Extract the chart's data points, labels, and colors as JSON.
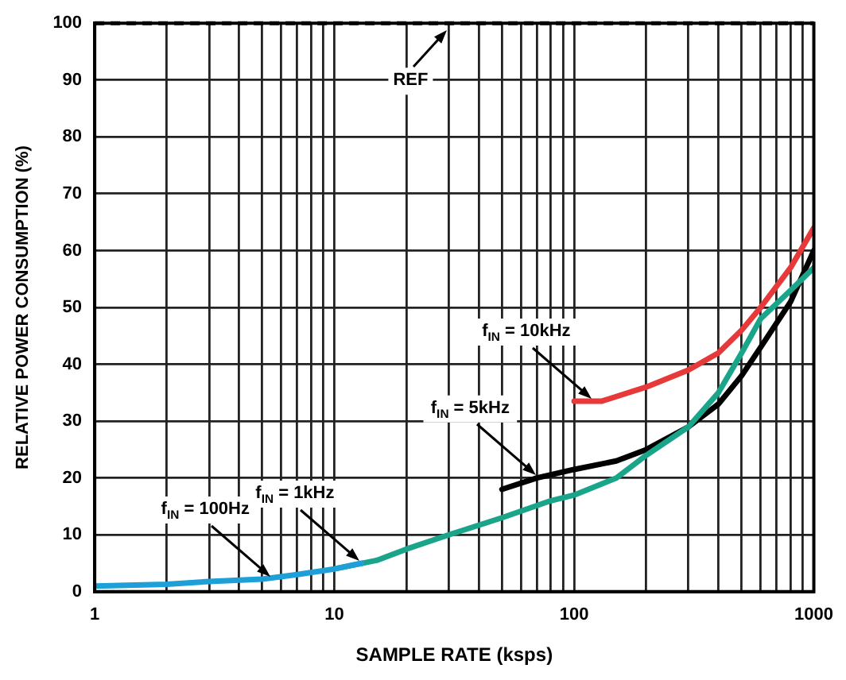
{
  "chart_data": {
    "type": "line",
    "xlabel": "SAMPLE RATE (ksps)",
    "ylabel": "RELATIVE POWER CONSUMPTION (%)",
    "log": "x",
    "xlim": [
      1,
      1000
    ],
    "ylim": [
      0,
      100
    ],
    "xticks": [
      1,
      {
        "value": 2,
        "label": null
      },
      {
        "value": 3,
        "label": null
      },
      {
        "value": 4,
        "label": null
      },
      {
        "value": 5,
        "label": null
      },
      {
        "value": 6,
        "label": null
      },
      {
        "value": 7,
        "label": null
      },
      {
        "value": 8,
        "label": null
      },
      {
        "value": 9,
        "label": null
      },
      10,
      {
        "value": 20,
        "label": null
      },
      {
        "value": 30,
        "label": null
      },
      {
        "value": 40,
        "label": null
      },
      {
        "value": 50,
        "label": null
      },
      {
        "value": 60,
        "label": null
      },
      {
        "value": 70,
        "label": null
      },
      {
        "value": 80,
        "label": null
      },
      {
        "value": 90,
        "label": null
      },
      100,
      {
        "value": 200,
        "label": null
      },
      {
        "value": 300,
        "label": null
      },
      {
        "value": 400,
        "label": null
      },
      {
        "value": 500,
        "label": null
      },
      {
        "value": 600,
        "label": null
      },
      {
        "value": 700,
        "label": null
      },
      {
        "value": 800,
        "label": null
      },
      {
        "value": 900,
        "label": null
      },
      1000
    ],
    "yticks": [
      0,
      10,
      20,
      30,
      40,
      50,
      60,
      70,
      80,
      90,
      100
    ],
    "grid": true,
    "legend": false,
    "marker": "none",
    "line_style": "solid",
    "series": [
      {
        "color": "#1e9fd8",
        "x": [
          1,
          2,
          3,
          5,
          7,
          10,
          13
        ],
        "values": [
          1,
          1.3,
          1.8,
          2.2,
          3,
          4,
          5
        ]
      },
      {
        "color": "#1aa58a",
        "x": [
          10,
          15,
          20,
          30,
          50,
          80,
          100,
          150,
          200,
          300,
          400,
          500,
          600,
          800,
          1000
        ],
        "values": [
          4,
          5.5,
          7.5,
          10,
          13,
          16,
          17,
          20,
          24,
          29,
          35,
          42,
          48,
          53,
          57
        ]
      },
      {
        "color": "#000000",
        "x": [
          50,
          70,
          100,
          150,
          200,
          300,
          400,
          500,
          600,
          800,
          1000
        ],
        "values": [
          18,
          20,
          21.5,
          23,
          25,
          29,
          33,
          38,
          43,
          51,
          60
        ]
      },
      {
        "color": "#e8393a",
        "x": [
          100,
          130,
          200,
          300,
          400,
          500,
          600,
          800,
          1000
        ],
        "values": [
          33.5,
          33.5,
          36,
          39,
          42,
          46,
          50,
          57,
          64
        ]
      }
    ],
    "ref_lines": [
      {
        "axis": "y",
        "value": 100,
        "line_style": "dashed",
        "color": "#000000"
      }
    ],
    "annotations": [
      {
        "text": "REF",
        "x": 30,
        "y": 100
      },
      {
        "text": "f$_{IN}$ = 100Hz",
        "x": 5.5,
        "y": 2.2
      },
      {
        "text": "f$_{IN}$ = 1kHz",
        "x": 13,
        "y": 5
      },
      {
        "text": "f$_{IN}$ = 5kHz",
        "x": 70,
        "y": 20
      },
      {
        "text": "f$_{IN}$ = 10kHz",
        "x": 120,
        "y": 33.5
      }
    ]
  }
}
